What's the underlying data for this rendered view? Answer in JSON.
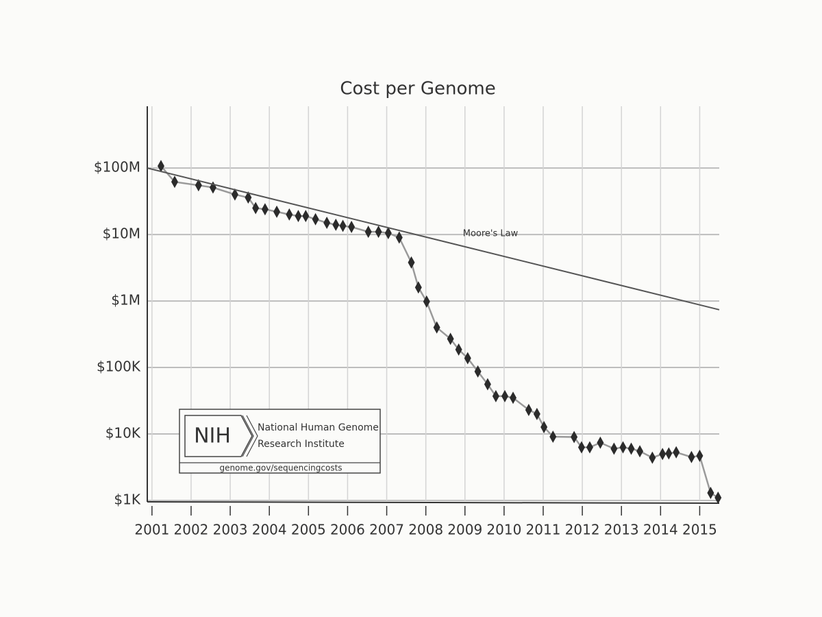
{
  "chart_data": {
    "type": "line",
    "title": "Cost per Genome",
    "yscale": "log",
    "grid": true,
    "xlim": [
      2000.88,
      2015.5
    ],
    "xticks": [
      2001,
      2002,
      2003,
      2004,
      2005,
      2006,
      2007,
      2008,
      2009,
      2010,
      2011,
      2012,
      2013,
      2014,
      2015
    ],
    "ylim": [
      1000,
      850000000
    ],
    "yticks": [
      {
        "value": 1000,
        "label": "$1K"
      },
      {
        "value": 10000,
        "label": "$10K"
      },
      {
        "value": 100000,
        "label": "$100K"
      },
      {
        "value": 1000000,
        "label": "$1M"
      },
      {
        "value": 10000000,
        "label": "$10M"
      },
      {
        "value": 100000000,
        "label": "$100M"
      }
    ],
    "series": [
      {
        "name": "Cost per Genome",
        "color": "#2b2b2b",
        "marker": "diamond",
        "x": [
          2001.23,
          2001.58,
          2002.19,
          2002.56,
          2003.12,
          2003.46,
          2003.65,
          2003.89,
          2004.19,
          2004.51,
          2004.74,
          2004.93,
          2005.18,
          2005.47,
          2005.7,
          2005.88,
          2006.1,
          2006.53,
          2006.79,
          2007.04,
          2007.32,
          2007.63,
          2007.81,
          2008.02,
          2008.28,
          2008.63,
          2008.84,
          2009.07,
          2009.33,
          2009.58,
          2009.79,
          2010.02,
          2010.23,
          2010.63,
          2010.84,
          2011.02,
          2011.25,
          2011.79,
          2011.98,
          2012.19,
          2012.46,
          2012.81,
          2013.04,
          2013.25,
          2013.47,
          2013.79,
          2014.05,
          2014.21,
          2014.4,
          2014.79,
          2015.0,
          2015.28,
          2015.47
        ],
        "values": [
          107000000,
          62000000,
          55000000,
          51000000,
          40000000,
          36000000,
          25000000,
          24000000,
          22000000,
          20000000,
          19000000,
          19000000,
          17000000,
          15000000,
          14000000,
          13500000,
          13000000,
          11000000,
          11000000,
          10500000,
          9000000,
          3800000,
          1600000,
          980000,
          400000,
          270000,
          186000,
          138000,
          87000,
          56000,
          37000,
          37000,
          35000,
          23000,
          20000,
          12700,
          9100,
          9000,
          6300,
          6300,
          7400,
          6000,
          6300,
          6000,
          5500,
          4400,
          5000,
          5100,
          5300,
          4500,
          4700,
          1300,
          1100
        ]
      },
      {
        "name": "Moore's Law",
        "color": "#555555",
        "marker": "none",
        "x": [
          2000.88,
          2015.5
        ],
        "values": [
          100000000,
          740000
        ]
      }
    ],
    "logo": {
      "abbr": "NIH",
      "lines": [
        "National Human Genome",
        "Research Institute"
      ],
      "url": "genome.gov/sequencingcosts"
    }
  }
}
